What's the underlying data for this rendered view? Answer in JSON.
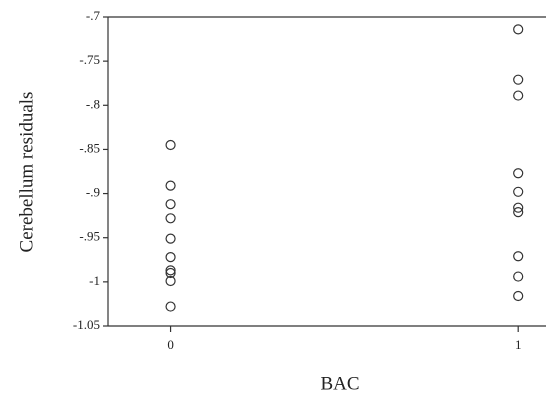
{
  "chart_data": {
    "type": "scatter",
    "xlabel": "BAC",
    "ylabel": "Cerebellum residuals",
    "x": [
      0,
      0,
      0,
      0,
      0,
      0,
      0,
      0,
      0,
      0,
      1,
      1,
      1,
      1,
      1,
      1,
      1,
      1,
      1,
      1
    ],
    "values": [
      -0.845,
      -0.891,
      -0.912,
      -0.928,
      -0.951,
      -0.972,
      -0.987,
      -0.99,
      -0.999,
      -1.028,
      -0.714,
      -0.771,
      -0.789,
      -0.877,
      -0.898,
      -0.916,
      -0.921,
      -0.971,
      -0.994,
      -1.016
    ],
    "color": "#333333",
    "xlim": [
      -0.18,
      1.08
    ],
    "xticks": [
      0,
      1
    ],
    "ylim": [
      -1.05,
      -0.7
    ],
    "yticks": [
      {
        "value": -1.05,
        "label": "-1.05"
      },
      -1,
      {
        "value": -0.95,
        "label": "-.95"
      },
      {
        "value": -0.9,
        "label": "-.9"
      },
      {
        "value": -0.85,
        "label": "-.85"
      },
      {
        "value": -0.8,
        "label": "-.8"
      },
      {
        "value": -0.75,
        "label": "-.75"
      },
      {
        "value": -0.7,
        "label": "-.7"
      }
    ]
  }
}
